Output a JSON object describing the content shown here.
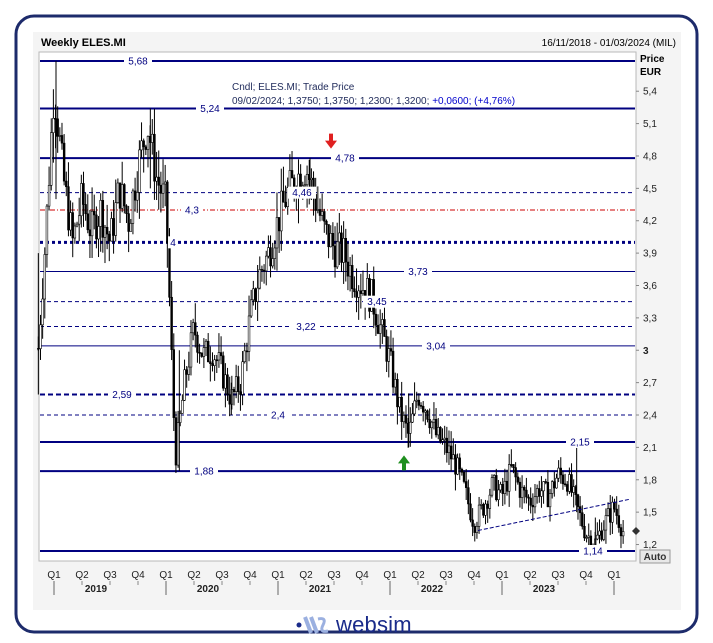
{
  "header": {
    "title": "Weekly ELES.MI",
    "date_range": "16/11/2018 - 01/03/2024 (MIL)"
  },
  "info": {
    "line1": "Cndl; ELES.MI; Trade Price",
    "line2_prefix": "09/02/2024; 1,3750; 1,3750; 1,2300; 1,3200; ",
    "line2_change": "+0,0600; (+4,76%)"
  },
  "axis": {
    "price_label": "Price",
    "unit_label": "EUR",
    "auto_label": "Auto"
  },
  "footer": {
    "brand": "websim"
  },
  "colors": {
    "navy": "#000080",
    "frame": "#1d2b6b",
    "red_dash": "#cc0000",
    "arrow_up": "#1f8f1f",
    "arrow_down": "#e02020"
  },
  "chart_data": {
    "type": "candlestick",
    "title": "Weekly ELES.MI",
    "ylabel": "Price EUR",
    "ylim": [
      1.05,
      5.75
    ],
    "y_ticks": [
      "5,4",
      "5,1",
      "4,8",
      "4,5",
      "4,2",
      "3,9",
      "3,6",
      "3,3",
      "3",
      "2,7",
      "2,4",
      "2,1",
      "1,8",
      "1,5",
      "1,2"
    ],
    "y_tick_values": [
      5.4,
      5.1,
      4.8,
      4.5,
      4.2,
      3.9,
      3.6,
      3.3,
      3.0,
      2.7,
      2.4,
      2.1,
      1.8,
      1.5,
      1.2
    ],
    "x_quarter_labels": [
      "Q1",
      "Q2",
      "Q3",
      "Q4",
      "Q1",
      "Q2",
      "Q3",
      "Q4",
      "Q1",
      "Q2",
      "Q3",
      "Q4",
      "Q1",
      "Q2",
      "Q3",
      "Q4",
      "Q1",
      "Q2",
      "Q3",
      "Q4",
      "Q1"
    ],
    "x_year_labels": [
      "2019",
      "2020",
      "2021",
      "2022",
      "2023"
    ],
    "levels": [
      {
        "value": 5.68,
        "label": "5,68",
        "style": "solid-thick"
      },
      {
        "value": 5.24,
        "label": "5,24",
        "style": "solid-thick"
      },
      {
        "value": 4.78,
        "label": "4,78",
        "style": "solid-thick"
      },
      {
        "value": 4.46,
        "label": "4,46",
        "style": "dashed"
      },
      {
        "value": 4.3,
        "label": "4,3",
        "style": "red-dashdot"
      },
      {
        "value": 4.0,
        "label": "4",
        "style": "dotted-thick"
      },
      {
        "value": 3.73,
        "label": "3,73",
        "style": "solid-thin"
      },
      {
        "value": 3.45,
        "label": "3,45",
        "style": "dashed"
      },
      {
        "value": 3.22,
        "label": "3,22",
        "style": "dashed"
      },
      {
        "value": 3.04,
        "label": "3,04",
        "style": "solid-thin"
      },
      {
        "value": 2.59,
        "label": "2,59",
        "style": "dashed-thick"
      },
      {
        "value": 2.4,
        "label": "2,4",
        "style": "dashed"
      },
      {
        "value": 2.15,
        "label": "2,15",
        "style": "solid-thick"
      },
      {
        "value": 1.88,
        "label": "1,88",
        "style": "solid-thick"
      },
      {
        "value": 1.14,
        "label": "1,14",
        "style": "solid-thick"
      }
    ],
    "trendline": {
      "x": [
        "2022-Q4",
        "2024-Q1"
      ],
      "y": [
        1.33,
        1.62
      ]
    },
    "markers": [
      {
        "type": "arrow-down",
        "x": "2021-Q3",
        "y": 4.85
      },
      {
        "type": "arrow-up",
        "x": "2022-Q2",
        "y": 1.97
      }
    ],
    "series_approx_weekly_close": [
      [
        "2018-11",
        2.6
      ],
      [
        "2018-12",
        3.9
      ],
      [
        "2019-01",
        5.45
      ],
      [
        "2019-02",
        4.6
      ],
      [
        "2019-03",
        4.0
      ],
      [
        "2019-04",
        4.4
      ],
      [
        "2019-05",
        4.1
      ],
      [
        "2019-06",
        4.3
      ],
      [
        "2019-07",
        4.0
      ],
      [
        "2019-08",
        4.5
      ],
      [
        "2019-09",
        4.2
      ],
      [
        "2019-10",
        4.7
      ],
      [
        "2019-11",
        5.1
      ],
      [
        "2019-12",
        4.6
      ],
      [
        "2020-01",
        4.35
      ],
      [
        "2020-02",
        2.0
      ],
      [
        "2020-03",
        2.7
      ],
      [
        "2020-04",
        3.2
      ],
      [
        "2020-05",
        2.95
      ],
      [
        "2020-06",
        3.0
      ],
      [
        "2020-07",
        2.8
      ],
      [
        "2020-08",
        2.55
      ],
      [
        "2020-09",
        2.7
      ],
      [
        "2020-10",
        3.3
      ],
      [
        "2020-11",
        3.7
      ],
      [
        "2020-12",
        3.9
      ],
      [
        "2021-01",
        4.2
      ],
      [
        "2021-02",
        4.45
      ],
      [
        "2021-03",
        4.6
      ],
      [
        "2021-04",
        4.7
      ],
      [
        "2021-05",
        4.4
      ],
      [
        "2021-06",
        4.1
      ],
      [
        "2021-07",
        3.95
      ],
      [
        "2021-08",
        3.9
      ],
      [
        "2021-09",
        3.7
      ],
      [
        "2021-10",
        3.6
      ],
      [
        "2021-11",
        3.5
      ],
      [
        "2021-12",
        3.2
      ],
      [
        "2022-01",
        2.9
      ],
      [
        "2022-02",
        2.45
      ],
      [
        "2022-03",
        2.2
      ],
      [
        "2022-04",
        2.6
      ],
      [
        "2022-05",
        2.45
      ],
      [
        "2022-06",
        2.2
      ],
      [
        "2022-07",
        2.1
      ],
      [
        "2022-08",
        1.95
      ],
      [
        "2022-09",
        1.7
      ],
      [
        "2022-10",
        1.4
      ],
      [
        "2022-11",
        1.55
      ],
      [
        "2022-12",
        1.75
      ],
      [
        "2023-01",
        1.65
      ],
      [
        "2023-02",
        1.9
      ],
      [
        "2023-03",
        1.7
      ],
      [
        "2023-04",
        1.6
      ],
      [
        "2023-05",
        1.72
      ],
      [
        "2023-06",
        1.65
      ],
      [
        "2023-07",
        1.85
      ],
      [
        "2023-08",
        1.8
      ],
      [
        "2023-09",
        1.55
      ],
      [
        "2023-10",
        1.3
      ],
      [
        "2023-11",
        1.22
      ],
      [
        "2023-12",
        1.4
      ],
      [
        "2024-01",
        1.55
      ],
      [
        "2024-02",
        1.32
      ]
    ]
  }
}
